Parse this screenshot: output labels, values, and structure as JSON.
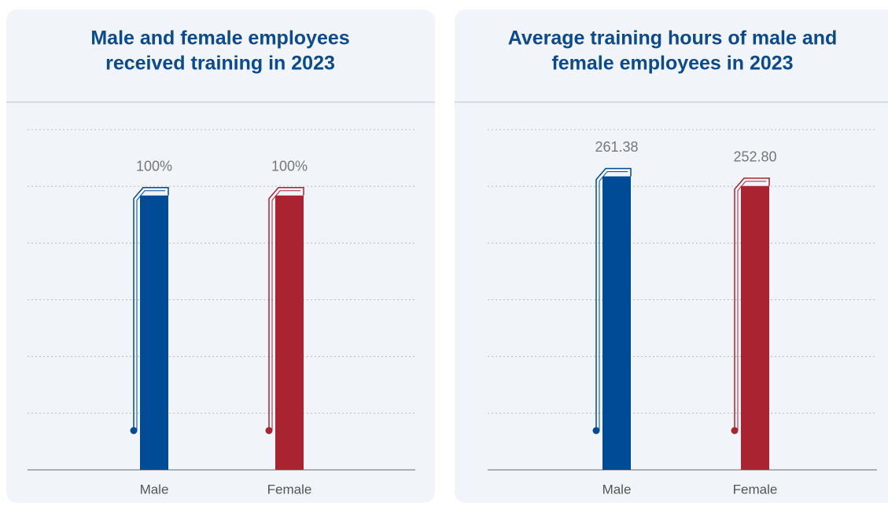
{
  "chart_data": [
    {
      "type": "bar",
      "title": [
        "Male and female employees",
        "received training in 2023"
      ],
      "categories": [
        "Male",
        "Female"
      ],
      "series": [
        {
          "values": [
            100,
            100
          ],
          "value_labels": [
            "100%",
            "100%"
          ],
          "colors": [
            "#004b96",
            "#aa2330"
          ]
        }
      ],
      "ylim": [
        0,
        124
      ],
      "grid": true
    },
    {
      "type": "bar",
      "title": [
        "Average training hours of male and",
        "female employees in 2023"
      ],
      "categories": [
        "Male",
        "Female"
      ],
      "series": [
        {
          "values": [
            261.38,
            252.8
          ],
          "value_labels": [
            "261.38",
            "252.80"
          ],
          "colors": [
            "#004b96",
            "#aa2330"
          ]
        }
      ],
      "ylim": [
        0,
        303
      ],
      "grid": true
    }
  ]
}
